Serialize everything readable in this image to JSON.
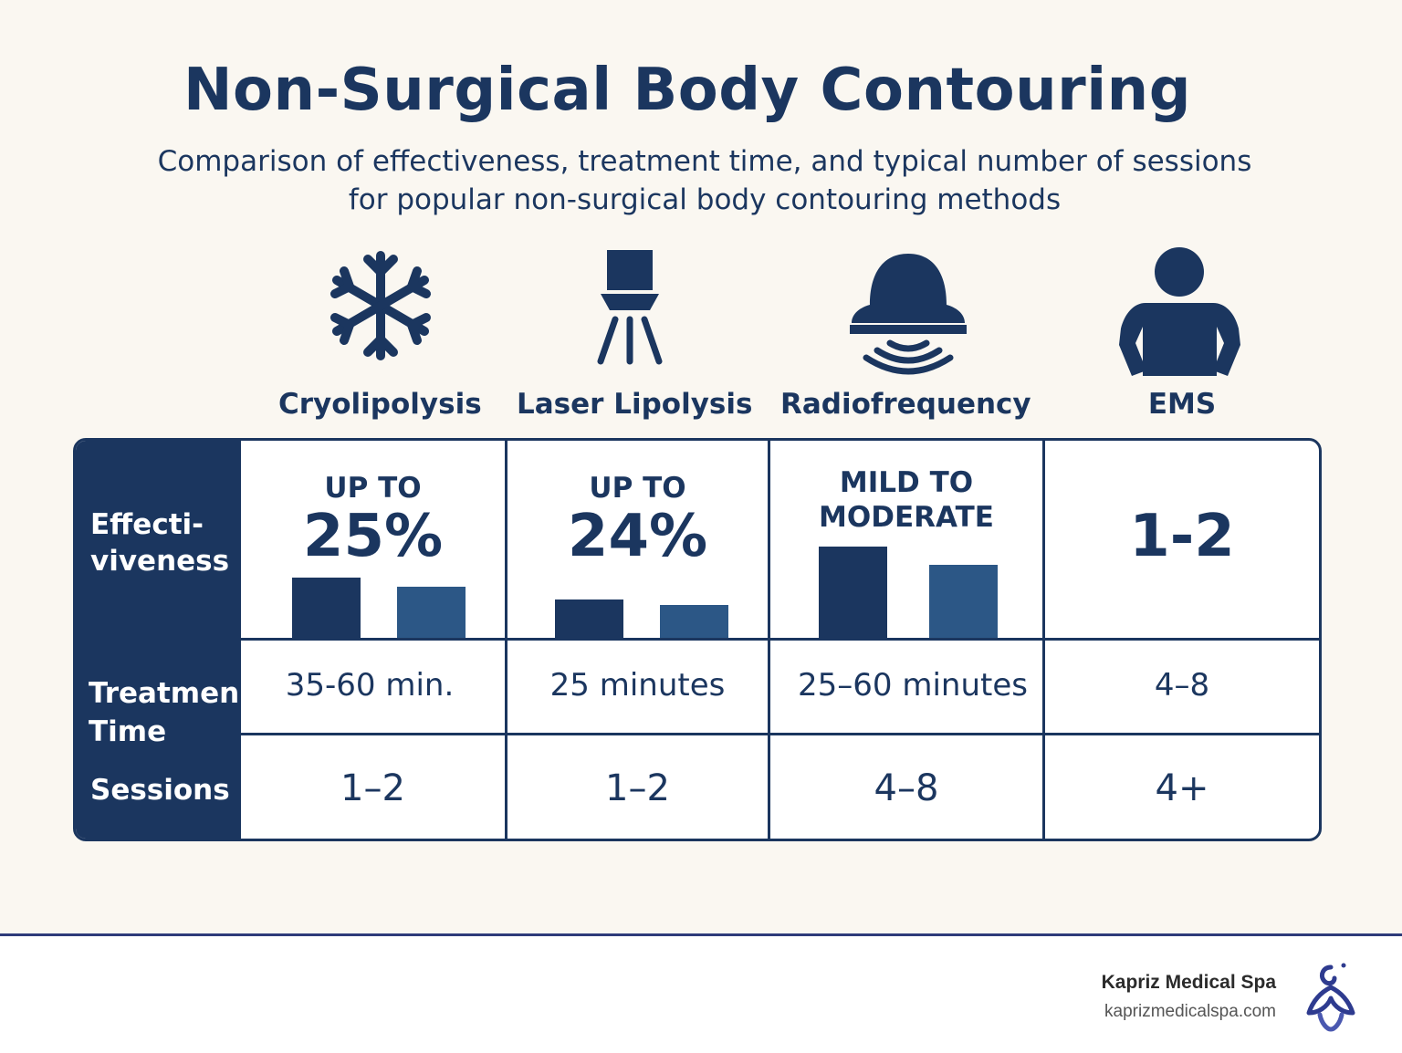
{
  "header": {
    "title": "Non-Surgical Body Contouring",
    "subtitle_line1": "Comparison of effectiveness, treatment time, and typical number of sessions",
    "subtitle_line2": "for popular non-surgical body contouring methods"
  },
  "methods": [
    {
      "name": "Cryolipolysis",
      "icon": "snowflake-icon"
    },
    {
      "name": "Laser Lipolysis",
      "icon": "laser-device-icon"
    },
    {
      "name": "Radiofrequency",
      "icon": "radiofrequency-device-icon"
    },
    {
      "name": "EMS",
      "icon": "person-icon"
    }
  ],
  "table": {
    "row_labels": {
      "effectiveness_line1": "Effecti-",
      "effectiveness_line2": "viveness",
      "treatment_line1": "Treatmen",
      "treatment_line2": "Time",
      "sessions": "Sessions"
    },
    "effectiveness": [
      {
        "small": "UP TO",
        "big": "25%",
        "bars": [
          0.33,
          0.28
        ]
      },
      {
        "small": "UP TO",
        "big": "24%",
        "bars": [
          0.21,
          0.18
        ]
      },
      {
        "small_line1": "MILD TO",
        "small_line2": "MODERATE",
        "bars": [
          0.5,
          0.4
        ]
      },
      {
        "big": "1-2"
      }
    ],
    "treatment_time": [
      "35-60 min.",
      "25 minutes",
      "25–60 minutes",
      "4–8"
    ],
    "sessions": [
      "1–2",
      "1–2",
      "4–8",
      "4+"
    ]
  },
  "colors": {
    "navy": "#1b365f",
    "bar_dark": "#1b365f",
    "bar_light": "#2c5786",
    "background": "#faf7f1"
  },
  "footer": {
    "brand": "Kapriz Medical Spa",
    "url": "kaprizmedicalspa.com",
    "logo_icon": "kapriz-logo-icon"
  }
}
